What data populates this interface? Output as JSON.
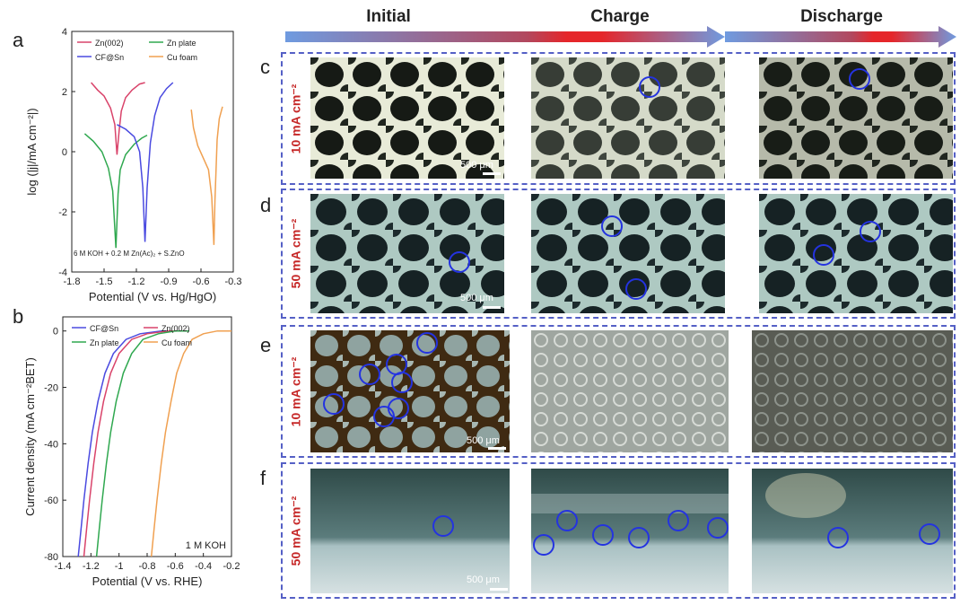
{
  "panels": {
    "a": "a",
    "b": "b",
    "c": "c",
    "d": "d",
    "e": "e",
    "f": "f"
  },
  "columns": [
    "Initial",
    "Charge",
    "Discharge"
  ],
  "rows": [
    {
      "letter": "c",
      "label": "10 mA cm⁻²",
      "scale": "500 μm"
    },
    {
      "letter": "d",
      "label": "50 mA cm⁻²",
      "scale": "500 μm"
    },
    {
      "letter": "e",
      "label": "10 mA cm⁻²",
      "scale": "500 μm"
    },
    {
      "letter": "f",
      "label": "50 mA cm⁻²",
      "scale": "500 μm"
    }
  ],
  "colors": {
    "arrow_start": "#6f9be0",
    "arrow_mid": "#e5262a",
    "marker": "#2433e0",
    "row_label": "#c62828",
    "box_border": "#5560c6"
  },
  "chart_data": [
    {
      "type": "line",
      "panel": "a",
      "xlabel": "Potential (V vs. Hg/HgO)",
      "ylabel": "log (|j|/mA cm⁻²|)",
      "xlim": [
        -1.8,
        -0.3
      ],
      "ylim": [
        -4,
        4
      ],
      "xticks": [
        -1.8,
        -1.5,
        -1.2,
        -0.9,
        -0.6,
        -0.3
      ],
      "yticks": [
        -4,
        -2,
        0,
        2,
        4
      ],
      "annotation": "6 M KOH + 0.2 M Zn(Ac)₂ + S.ZnO",
      "legend": [
        "Zn(002)",
        "Zn plate",
        "CF@Sn",
        "Cu foam"
      ],
      "series": [
        {
          "name": "Zn(002)",
          "color": "#d9436a",
          "x": [
            -1.62,
            -1.56,
            -1.5,
            -1.44,
            -1.4,
            -1.38,
            -1.36,
            -1.34,
            -1.3,
            -1.24,
            -1.17,
            -1.12
          ],
          "y": [
            2.3,
            2.05,
            1.85,
            1.45,
            0.9,
            -0.1,
            0.7,
            1.35,
            1.8,
            2.05,
            2.25,
            2.3
          ]
        },
        {
          "name": "Zn plate",
          "color": "#2fa84f",
          "x": [
            -1.68,
            -1.6,
            -1.52,
            -1.46,
            -1.42,
            -1.39,
            -1.37,
            -1.35,
            -1.3,
            -1.22,
            -1.15,
            -1.1
          ],
          "y": [
            0.6,
            0.35,
            0.0,
            -0.55,
            -1.3,
            -3.2,
            -1.4,
            -0.6,
            -0.1,
            0.25,
            0.45,
            0.55
          ]
        },
        {
          "name": "CF@Sn",
          "color": "#4a4ae0",
          "x": [
            -1.38,
            -1.3,
            -1.22,
            -1.17,
            -1.14,
            -1.12,
            -1.1,
            -1.07,
            -1.03,
            -0.98,
            -0.92,
            -0.86
          ],
          "y": [
            0.9,
            0.75,
            0.5,
            0.0,
            -1.2,
            -3.0,
            -1.2,
            0.3,
            1.2,
            1.8,
            2.1,
            2.3
          ]
        },
        {
          "name": "Cu foam",
          "color": "#f0a050",
          "x": [
            -0.69,
            -0.67,
            -0.63,
            -0.58,
            -0.53,
            -0.5,
            -0.48,
            -0.47,
            -0.46,
            -0.45,
            -0.43,
            -0.4
          ],
          "y": [
            1.4,
            0.8,
            0.2,
            -0.2,
            -0.6,
            -1.5,
            -3.1,
            -1.6,
            -0.6,
            0.4,
            1.1,
            1.5
          ]
        }
      ]
    },
    {
      "type": "line",
      "panel": "b",
      "xlabel": "Potential (V vs. RHE)",
      "ylabel": "Current density (mA cm⁻²BET)",
      "xlim": [
        -1.4,
        -0.2
      ],
      "ylim": [
        -80,
        5
      ],
      "xticks": [
        -1.4,
        -1.2,
        -1.0,
        -0.8,
        -0.6,
        -0.4,
        -0.2
      ],
      "yticks": [
        -80,
        -60,
        -40,
        -20,
        0
      ],
      "annotation": "1 M KOH",
      "legend": [
        "CF@Sn",
        "Zn(002)",
        "Zn plate",
        "Cu foam"
      ],
      "series": [
        {
          "name": "CF@Sn",
          "color": "#4a4ae0",
          "x": [
            -1.29,
            -1.27,
            -1.25,
            -1.22,
            -1.19,
            -1.15,
            -1.1,
            -1.04,
            -0.95,
            -0.85,
            -0.7,
            -0.6
          ],
          "y": [
            -80,
            -70,
            -60,
            -47,
            -36,
            -25,
            -15,
            -8,
            -3,
            -1,
            0,
            0
          ]
        },
        {
          "name": "Zn(002)",
          "color": "#d9436a",
          "x": [
            -1.25,
            -1.23,
            -1.21,
            -1.18,
            -1.15,
            -1.11,
            -1.06,
            -1.0,
            -0.91,
            -0.8,
            -0.65,
            -0.55
          ],
          "y": [
            -80,
            -70,
            -60,
            -47,
            -36,
            -25,
            -15,
            -8,
            -3,
            -1,
            0,
            0
          ]
        },
        {
          "name": "Zn plate",
          "color": "#2fa84f",
          "x": [
            -1.16,
            -1.14,
            -1.12,
            -1.09,
            -1.06,
            -1.02,
            -0.97,
            -0.91,
            -0.83,
            -0.72,
            -0.6,
            -0.5
          ],
          "y": [
            -80,
            -70,
            -60,
            -47,
            -36,
            -25,
            -15,
            -8,
            -3,
            -1,
            0,
            0
          ]
        },
        {
          "name": "Cu foam",
          "color": "#f0a050",
          "x": [
            -0.77,
            -0.75,
            -0.73,
            -0.7,
            -0.67,
            -0.63,
            -0.59,
            -0.54,
            -0.48,
            -0.4,
            -0.3,
            -0.2
          ],
          "y": [
            -80,
            -70,
            -60,
            -47,
            -36,
            -25,
            -15,
            -8,
            -3,
            -1,
            0,
            0
          ]
        }
      ]
    }
  ]
}
